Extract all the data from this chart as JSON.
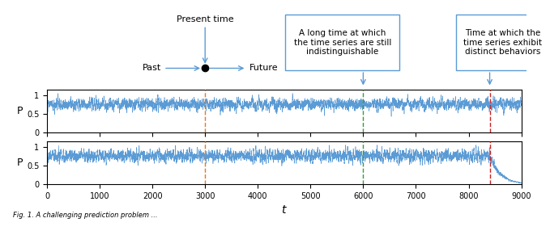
{
  "t_max": 9000,
  "t_present": 3000,
  "t_indistinguishable": 6000,
  "t_distinct": 8400,
  "xlim": [
    0,
    9000
  ],
  "ylabel": "P",
  "xlabel": "t",
  "line_color": "#5b9bd5",
  "orange_dashed": "#e87722",
  "green_dashed": "#3a9a3a",
  "red_dashed": "#cc2222",
  "annotation_color": "#5b9bd5",
  "present_time_label": "Present time",
  "past_label": "Past",
  "future_label": "Future",
  "box1_text": "A long time at which\nthe time series are still\nindistinguishable",
  "box2_text": "Time at which the\ntime series exhibit\ndistinct behaviors",
  "chaos_transition": 8400,
  "dt": 1,
  "background_color": "#ffffff",
  "caption": "Fig. 1. A challenging prediction problem ..."
}
